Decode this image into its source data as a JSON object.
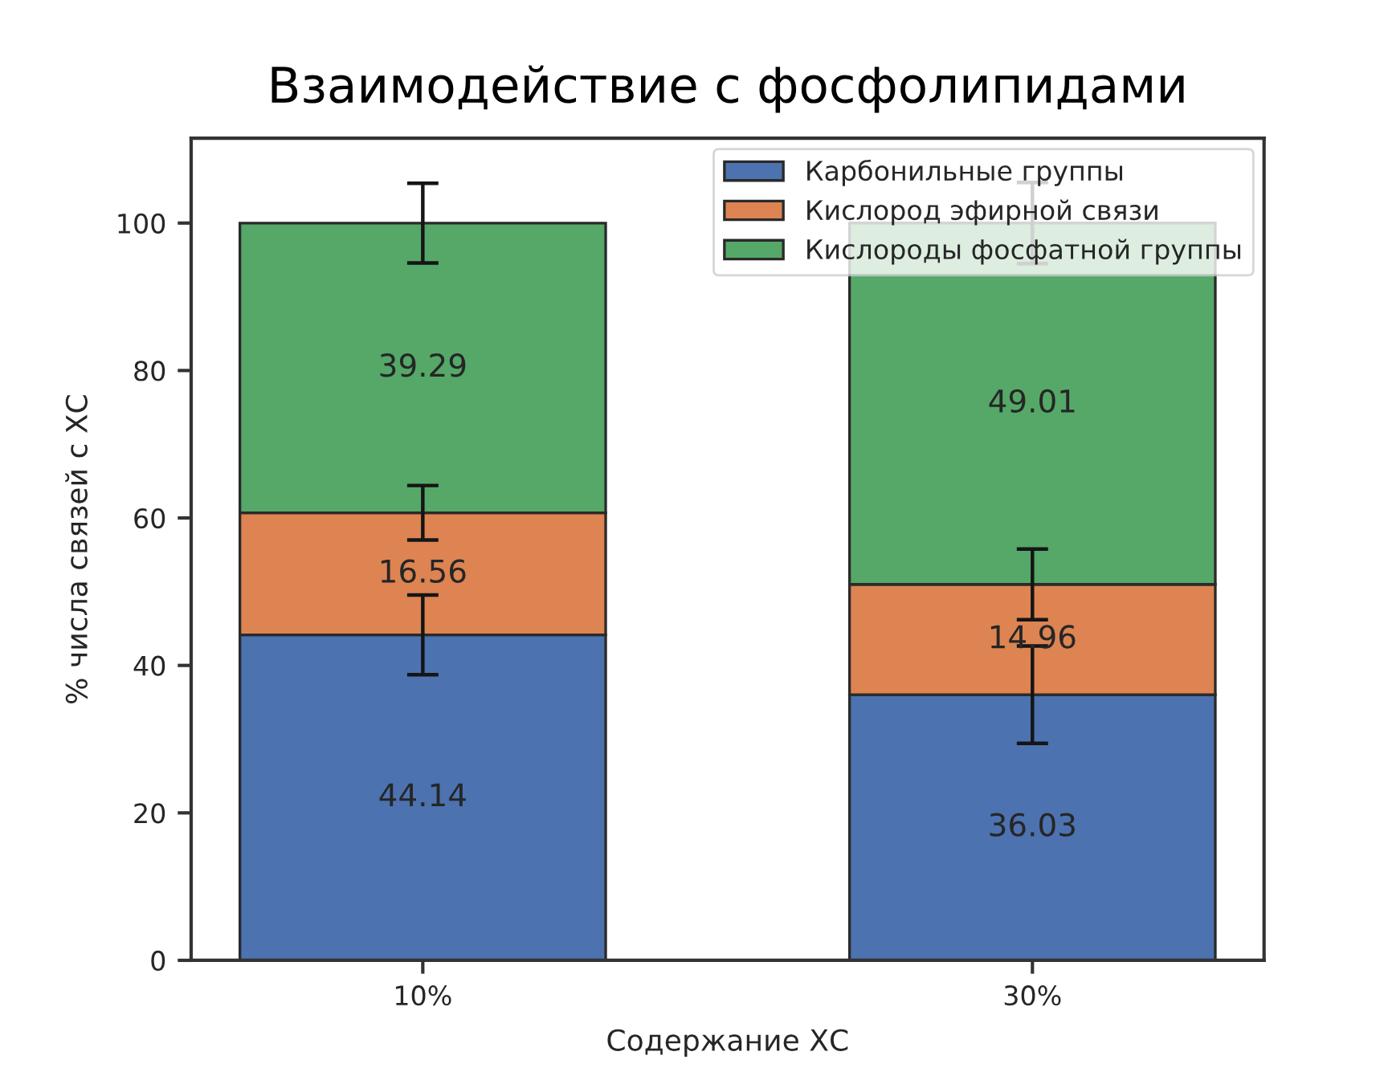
{
  "chart_data": {
    "type": "bar",
    "title": "Взаимодействие с фосфолипидами",
    "xlabel": "Содержание ХС",
    "ylabel": "% числа связей с ХС",
    "categories": [
      "10%",
      "30%"
    ],
    "stacked": true,
    "series": [
      {
        "name": "Карбонильные группы",
        "color": "#4c72b0",
        "values": [
          44.14,
          36.03
        ],
        "errors": [
          5.4,
          6.6
        ]
      },
      {
        "name": "Кислород эфирной связи",
        "color": "#dd8452",
        "values": [
          16.56,
          14.96
        ],
        "errors": [
          3.7,
          4.8
        ]
      },
      {
        "name": "Кислороды фосфатной группы",
        "color": "#55a868",
        "values": [
          39.29,
          49.01
        ],
        "errors": [
          5.4,
          5.5
        ]
      }
    ],
    "ylim": [
      0,
      111.5
    ],
    "yticks": [
      0,
      20,
      40,
      60,
      80,
      100
    ],
    "data_labels": true,
    "legend": "top right"
  }
}
